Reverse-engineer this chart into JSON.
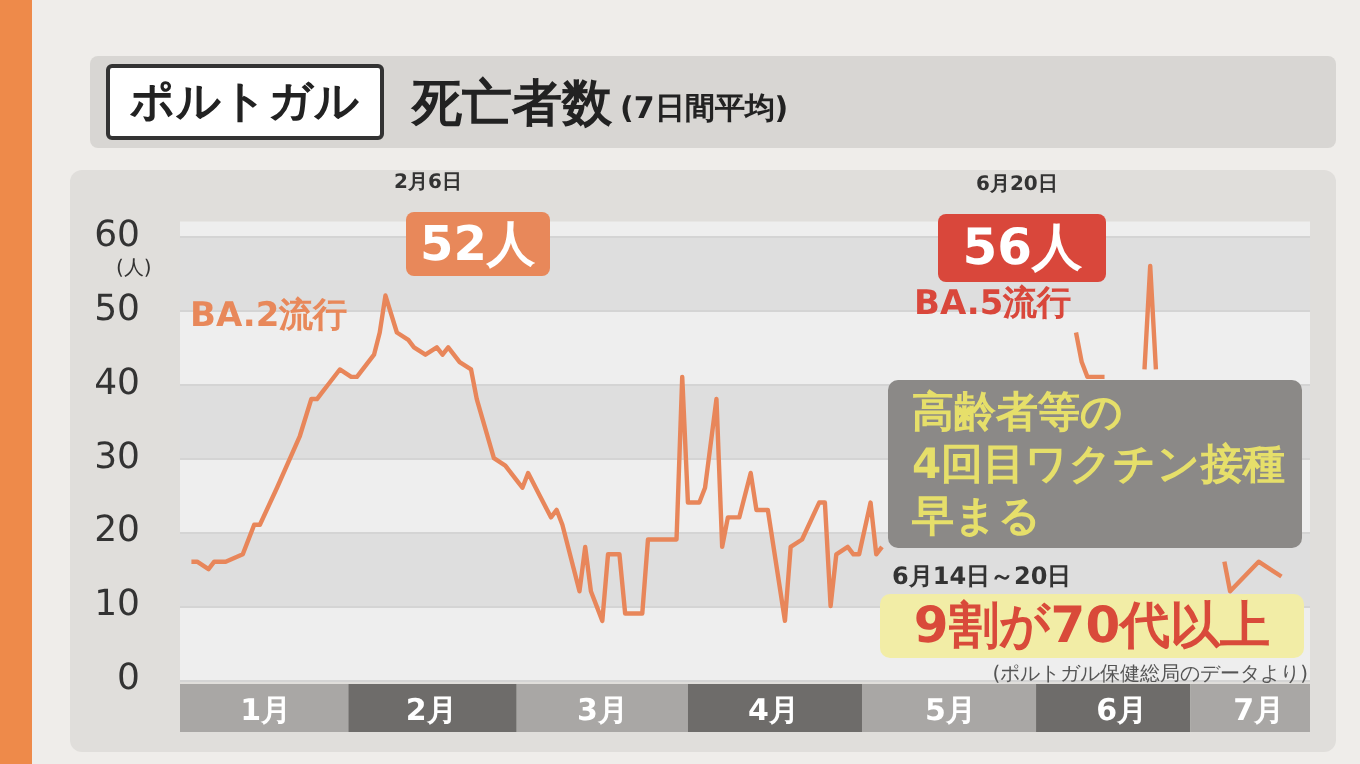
{
  "chart_data": {
    "type": "line",
    "title": "ポルトガル",
    "subtitle": "死亡者数",
    "ylabel": "(人)",
    "annotations": [
      "2月6日",
      {
        "text": "52人",
        "x": "--02-06",
        "y": 52
      },
      "BA.2流行",
      "6月20日",
      {
        "text": "56人",
        "x": "--06-20",
        "y": 56
      },
      "BA.5流行",
      "高齢者等の",
      "4回目ワクチン接種",
      "早まる",
      "6月14日～20日",
      "9割が70代以上",
      "(ポルトガル保健総局のデータより)",
      "(7日間平均)"
    ],
    "x": [
      "--01-03",
      "--01-04",
      "--01-06",
      "--01-07",
      "--01-09",
      "--01-12",
      "--01-14",
      "--01-15",
      "--01-18",
      "--01-22",
      "--01-24",
      "--01-25",
      "--01-26",
      "--01-27",
      "--01-29",
      "--01-31",
      "--02-01",
      "--02-04",
      "--02-05",
      "--02-06",
      "--02-08",
      "--02-10",
      "--02-11",
      "--02-13",
      "--02-15",
      "--02-16",
      "--02-17",
      "--02-19",
      "--02-21",
      "--02-22",
      "--02-25",
      "--02-27",
      "--03-01",
      "--03-02",
      "--03-03",
      "--03-05",
      "--03-07",
      "--03-08",
      "--03-09",
      "--03-12",
      "--03-13",
      "--03-14",
      "--03-16",
      "--03-17",
      "--03-19",
      "--03-20",
      "--03-23",
      "--03-24",
      "--03-29",
      "--03-30",
      "--03-31",
      "--04-02",
      "--04-03",
      "--04-05",
      "--04-06",
      "--04-07",
      "--04-09",
      "--04-11",
      "--04-12",
      "--04-14",
      "--04-17",
      "--04-18",
      "--04-20",
      "--04-23",
      "--04-24",
      "--04-25",
      "--04-26",
      "--04-28",
      "--04-29",
      "--04-30",
      "--05-02",
      "--05-03",
      "--05-04",
      "--05-20",
      "--06-07",
      "--06-08",
      "--06-09",
      "--06-11",
      "--06-12",
      "--06-16",
      "--06-19",
      "--06-20",
      "--06-21",
      "--06-27",
      "--07-03",
      "--07-04",
      "--07-09",
      "--07-13"
    ],
    "series": [
      {
        "color": "#e8865a",
        "values": [
          16,
          16,
          15,
          16,
          16,
          17,
          21,
          21,
          26,
          33,
          38,
          38,
          39,
          40,
          42,
          41,
          41,
          44,
          47,
          52,
          47,
          46,
          45,
          44,
          45,
          44,
          45,
          43,
          42,
          38,
          30,
          29,
          27,
          26,
          28,
          25,
          22,
          23,
          21,
          12,
          18,
          12,
          8,
          17,
          17,
          9,
          9,
          19,
          19,
          41,
          24,
          24,
          26,
          38,
          18,
          22,
          22,
          28,
          23,
          23,
          8,
          18,
          19,
          24,
          24,
          10,
          17,
          18,
          17,
          17,
          24,
          17,
          18,
          null,
          47,
          43,
          41,
          41,
          41,
          null,
          42,
          56,
          42,
          null,
          16,
          12,
          16,
          14
        ]
      }
    ],
    "xlim": [
      "--01-01",
      "--07-18"
    ],
    "xticks": [
      {
        "value": "--01-16",
        "label": "1月"
      },
      {
        "value": "--02-14",
        "label": "2月"
      },
      {
        "value": "--03-16",
        "label": "3月"
      },
      {
        "value": "--04-15",
        "label": "4月"
      },
      {
        "value": "--05-16",
        "label": "5月"
      },
      {
        "value": "--06-15",
        "label": "6月"
      },
      {
        "value": "--07-09",
        "label": "7月"
      }
    ],
    "ylim": [
      0,
      62
    ],
    "yticks": [
      0,
      10,
      20,
      30,
      40,
      50,
      60
    ],
    "grid": true,
    "legend": false,
    "marker": "none",
    "line_style": "solid"
  }
}
